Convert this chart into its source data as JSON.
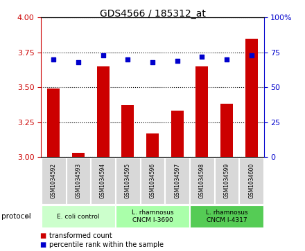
{
  "title": "GDS4566 / 185312_at",
  "samples": [
    "GSM1034592",
    "GSM1034593",
    "GSM1034594",
    "GSM1034595",
    "GSM1034596",
    "GSM1034597",
    "GSM1034598",
    "GSM1034599",
    "GSM1034600"
  ],
  "transformed_counts": [
    3.49,
    3.03,
    3.65,
    3.37,
    3.17,
    3.33,
    3.65,
    3.38,
    3.85
  ],
  "percentile_ranks": [
    70,
    68,
    73,
    70,
    68,
    69,
    72,
    70,
    73
  ],
  "ylim_left": [
    3.0,
    4.0
  ],
  "ylim_right": [
    0,
    100
  ],
  "yticks_left": [
    3.0,
    3.25,
    3.5,
    3.75,
    4.0
  ],
  "yticks_right": [
    0,
    25,
    50,
    75,
    100
  ],
  "bar_color": "#cc0000",
  "dot_color": "#0000cc",
  "protocols": [
    {
      "label": "E. coli control",
      "start": 0,
      "end": 3,
      "color": "#ccffcc"
    },
    {
      "label": "L. rhamnosus\nCNCM I-3690",
      "start": 3,
      "end": 6,
      "color": "#aaffaa"
    },
    {
      "label": "L. rhamnosus\nCNCM I-4317",
      "start": 6,
      "end": 9,
      "color": "#55cc55"
    }
  ],
  "legend_red_label": "transformed count",
  "legend_blue_label": "percentile rank within the sample",
  "protocol_label": "protocol"
}
